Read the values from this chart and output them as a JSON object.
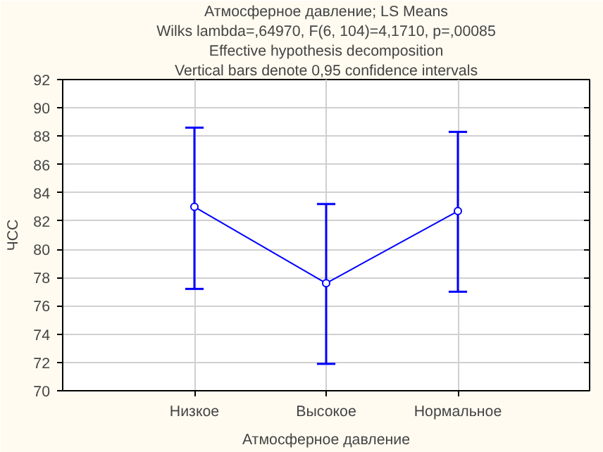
{
  "chart_data": {
    "type": "line",
    "title": "Атмосферное давление; LS Means",
    "subtitle": "Wilks lambda=,64970, F(6, 104)=4,1710, p=,00085",
    "annotations": [
      "Effective hypothesis decomposition",
      "Vertical bars denote 0,95 confidence intervals"
    ],
    "xlabel": "Атмосферное давление",
    "ylabel": "ЧСС",
    "categories": [
      "Низкое",
      "Высокое",
      "Нормальное"
    ],
    "series": [
      {
        "color": "#0000ff",
        "values": [
          83.0,
          77.6,
          82.7
        ],
        "errors": [
          [
            77.2,
            88.6
          ],
          [
            71.9,
            83.2
          ],
          [
            77.0,
            88.3
          ]
        ]
      }
    ],
    "ylim": [
      70,
      92
    ],
    "yticks": [
      70,
      72,
      74,
      76,
      78,
      80,
      82,
      84,
      86,
      88,
      90,
      92
    ],
    "grid": true,
    "marker": "circle",
    "line_style": "solid"
  }
}
